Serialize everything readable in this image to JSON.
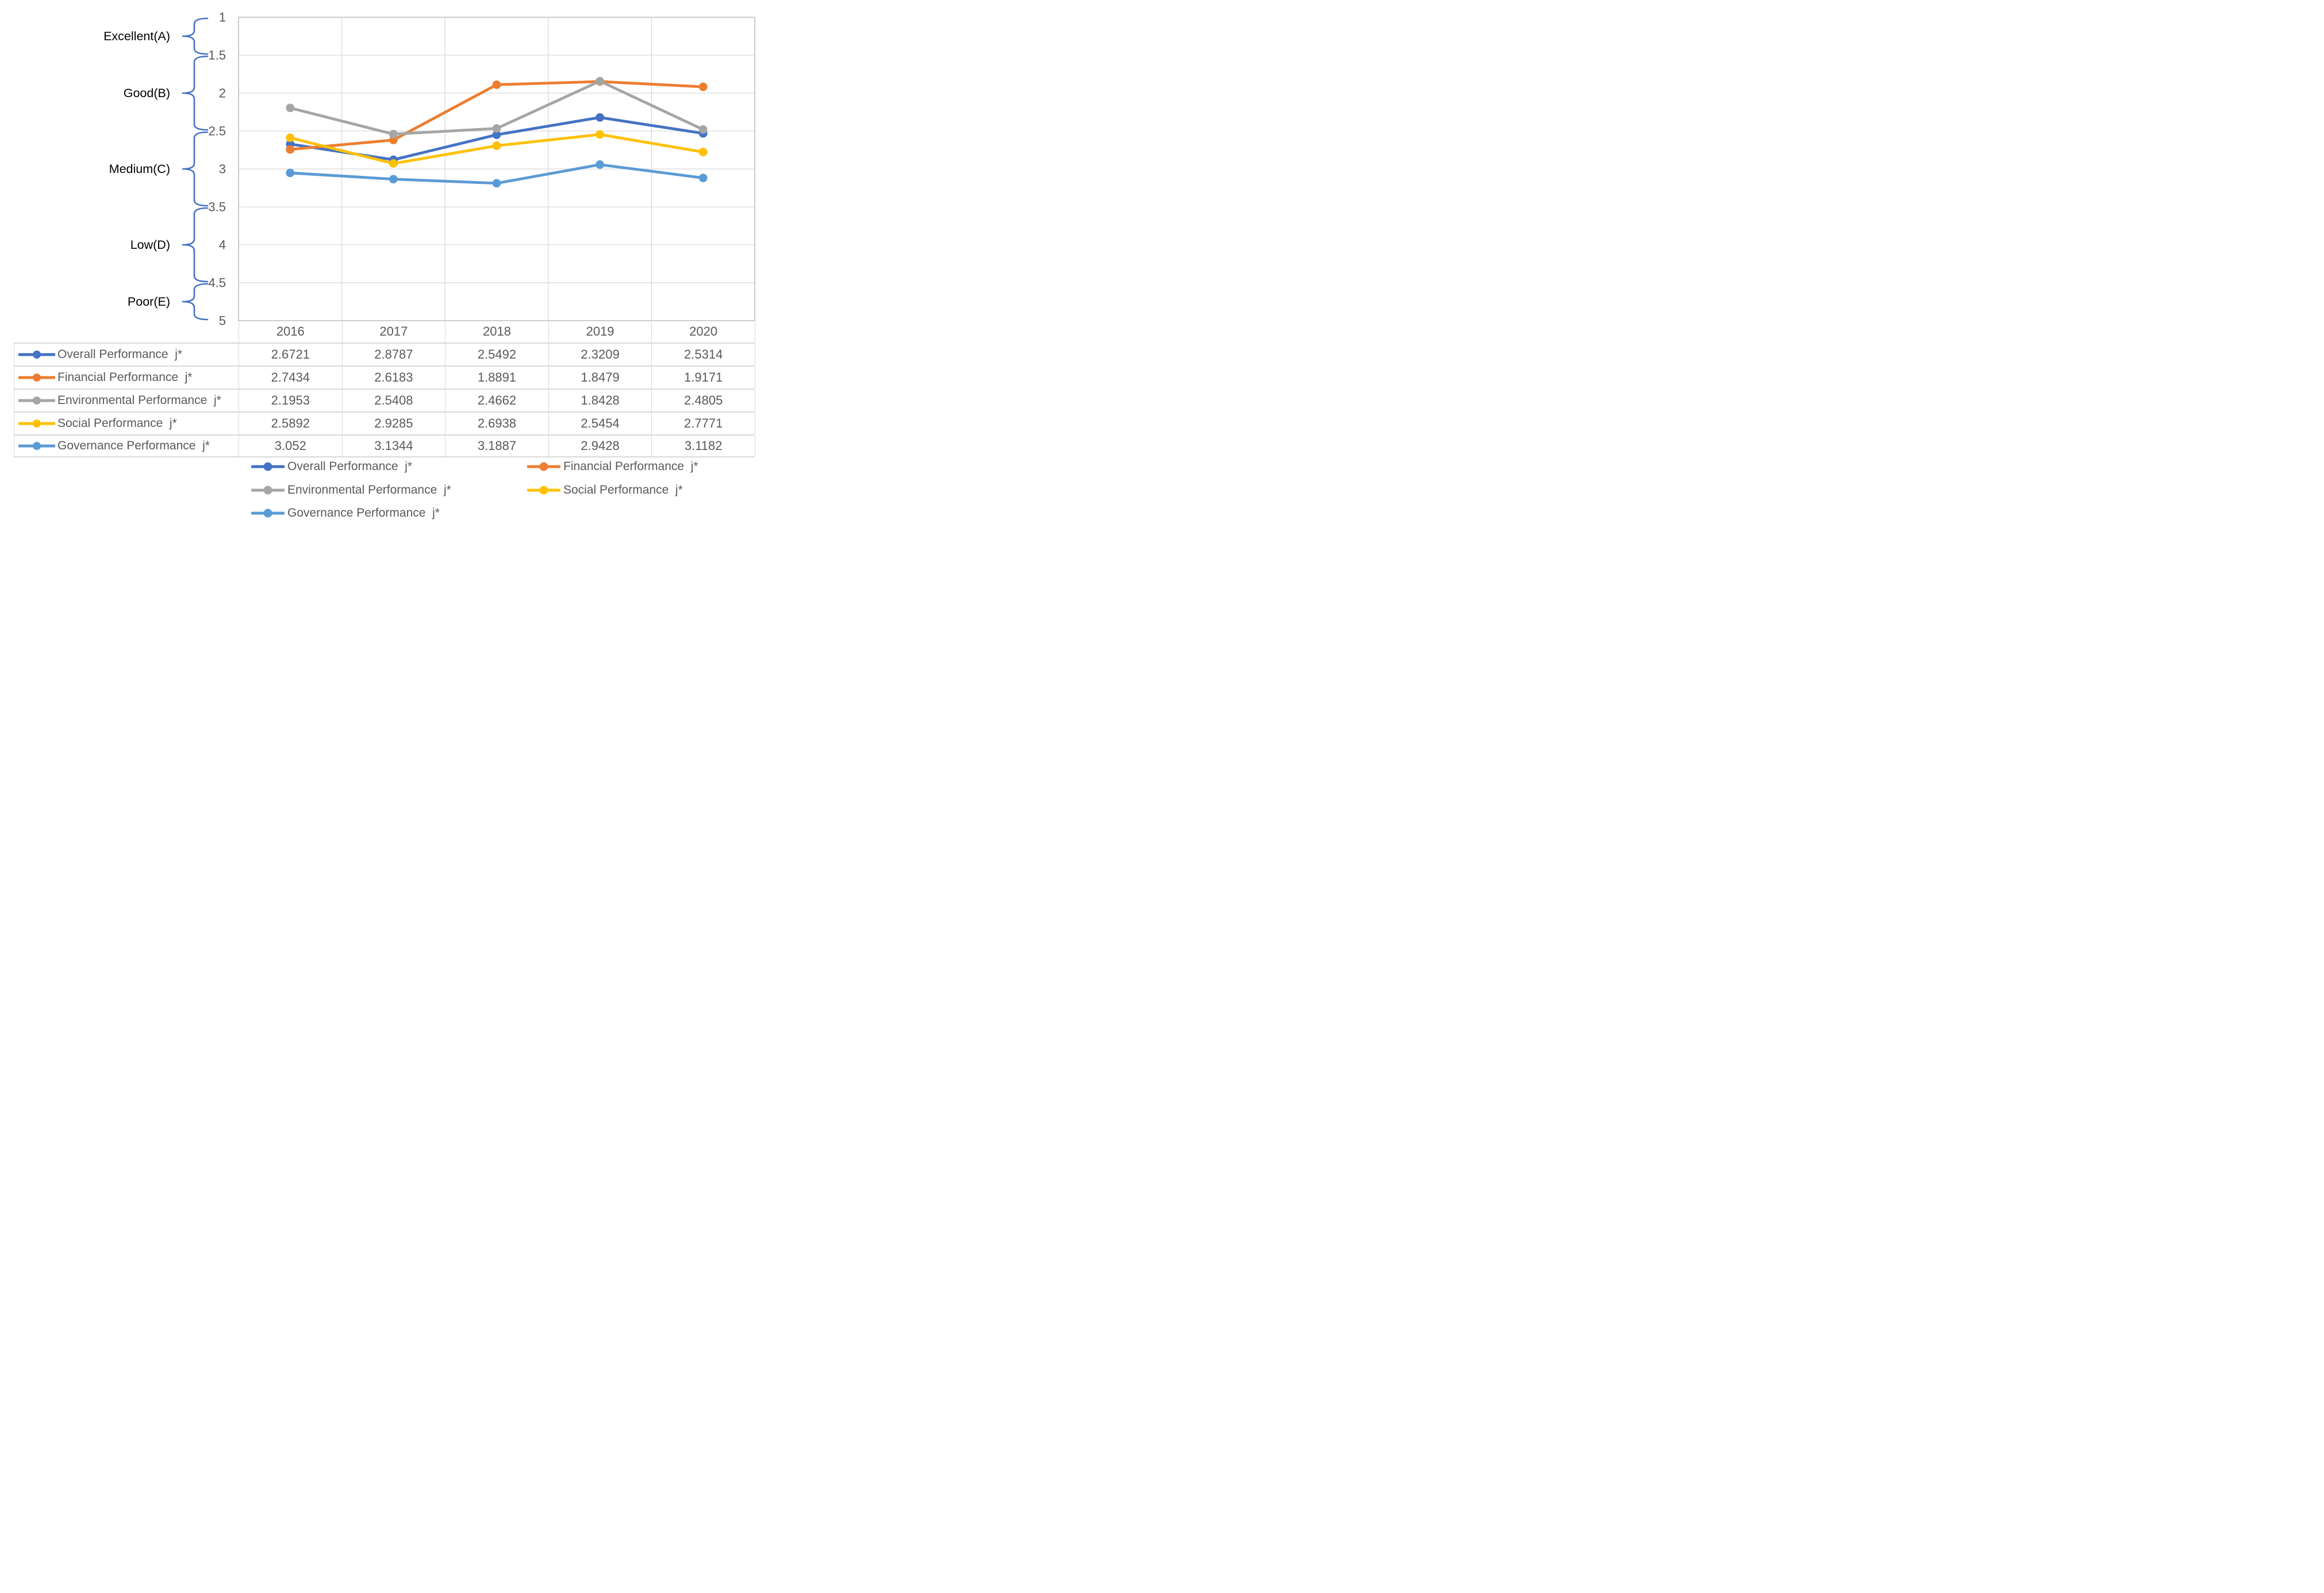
{
  "chart_data": {
    "type": "line",
    "title": "",
    "categories": [
      "2016",
      "2017",
      "2018",
      "2019",
      "2020"
    ],
    "series": [
      {
        "name": "Overall Performance  j*",
        "color": "#4472C4",
        "values": [
          2.6721,
          2.8787,
          2.5492,
          2.3209,
          2.5314
        ]
      },
      {
        "name": "Financial Performance  j*",
        "color": "#ED7D31",
        "values": [
          2.7434,
          2.6183,
          1.8891,
          1.8479,
          1.9171
        ]
      },
      {
        "name": "Environmental Performance  j*",
        "color": "#A5A5A5",
        "values": [
          2.1953,
          2.5408,
          2.4662,
          1.8428,
          2.4805
        ]
      },
      {
        "name": "Social Performance  j*",
        "color": "#FFC000",
        "values": [
          2.5892,
          2.9285,
          2.6938,
          2.5454,
          2.7771
        ]
      },
      {
        "name": "Governance Performance  j*",
        "color": "#5B9BD5",
        "values": [
          3.052,
          3.1344,
          3.1887,
          2.9428,
          3.1182
        ]
      }
    ],
    "y_axis": {
      "min": 1,
      "max": 5,
      "step": 0.5,
      "reversed": true,
      "tick_labels": [
        "1",
        "1.5",
        "2",
        "2.5",
        "3",
        "3.5",
        "4",
        "4.5",
        "5"
      ]
    },
    "rating_bands": [
      {
        "label": "Excellent(A)",
        "from": 1,
        "to": 1.5
      },
      {
        "label": "Good(B)",
        "from": 1.5,
        "to": 2.5
      },
      {
        "label": "Medium(C)",
        "from": 2.5,
        "to": 3.5
      },
      {
        "label": "Low(D)",
        "from": 3.5,
        "to": 4.5
      },
      {
        "label": "Poor(E)",
        "from": 4.5,
        "to": 5
      }
    ],
    "grid": true,
    "legend_position": "bottom",
    "data_table_shown": true
  },
  "styles": {
    "grid_color": "#D9D9D9",
    "plot_border_color": "#BFBFBF",
    "text_color": "#595959",
    "band_label_color": "#000000",
    "brace_color": "#4472C4",
    "table_border_color": "#D9D9D9",
    "background": "#FFFFFF"
  }
}
